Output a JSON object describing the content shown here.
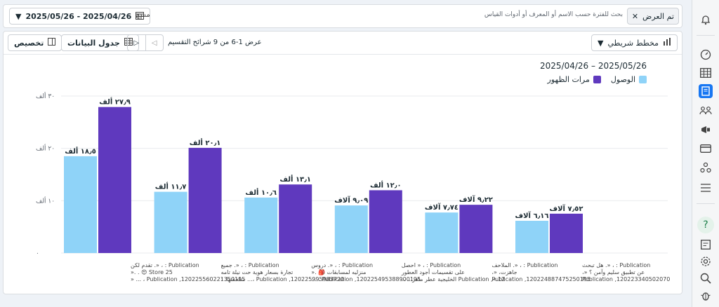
{
  "filterbar": {
    "date_range": "2025/05/26 - 2025/04/26",
    "clear_label": "مسح",
    "search_placeholder": "بحث للفترة حسب الاسم أو المعرف أو أدوات القياس",
    "chip_label": "تم العرض"
  },
  "toolbar": {
    "customize_label": "تخصيص",
    "datatable_label": "جدول البيانات",
    "page_info": "عرض 1-6 من 9 شرائح التقسيم",
    "chart_type_label": "مخطط شريطي"
  },
  "chart_header": {
    "date_range": "2025/04/26 – 2025/05/26",
    "legend": [
      {
        "label": "الوصول",
        "color": "#8fd3f8"
      },
      {
        "label": "مرات الظهور",
        "color": "#5f39be"
      }
    ]
  },
  "colors": {
    "reach": "#8fd3f8",
    "impressions": "#5f39be",
    "accent": "#1877f2"
  },
  "chart_data": {
    "type": "bar",
    "ylim": [
      0,
      30000
    ],
    "yticks": [
      {
        "value": 0,
        "label": "٠"
      },
      {
        "value": 10000,
        "label": "١٠ ألف"
      },
      {
        "value": 20000,
        "label": "٢٠ ألف"
      },
      {
        "value": 30000,
        "label": "٣٠ ألف"
      }
    ],
    "categories": [
      {
        "lines": [
          "Publication : ، «. تقدم لكن",
          "Store 25 😍 . .«",
          "Publication ,120225560221350195 ، ... «"
        ]
      },
      {
        "lines": [
          "Publication : ، «. جميع",
          "تجارة بسعار هوية حت نيلة تامه",
          "Publication ,120225995983720 ،... سلحقتها. :"
        ]
      },
      {
        "lines": [
          "Publication : ، «. دروس",
          "منزليه لمسابقات 🎒 .«",
          "Publication ,120225495388900195 ، ..."
        ]
      },
      {
        "lines": [
          "Publication : ، « احصل",
          "على تقسيمات أجود العطور",
          "Publication ,«.12 الخليجية عطر ماهر... ،."
        ]
      },
      {
        "lines": [
          "Publication : ، «. الملاحف",
          "جاهزت، «،",
          "Publication ,120224887475250195"
        ]
      },
      {
        "lines": [
          "Publication : ، «. هل تبحث",
          "عن تطبيق سليم وآمن ؟ «،",
          "Publication ,120223340502070195"
        ]
      }
    ],
    "series": [
      {
        "name": "الوصول",
        "values": [
          18500,
          11700,
          10600,
          9090,
          7740,
          6160
        ],
        "labels": [
          "١٨٫٥ ألف",
          "١١٫٧ ألف",
          "١٠٫٦ ألف",
          "٩٫٠٩ آلاف",
          "٧٫٧٤ آلاف",
          "٦٫١٦ آلاف"
        ]
      },
      {
        "name": "مرات الظهور",
        "values": [
          27900,
          20100,
          13100,
          12000,
          9220,
          7520
        ],
        "labels": [
          "٢٧٫٩ ألف",
          "٢٠٫١ ألف",
          "١٣٫١ ألف",
          "١٢٫٠ ألف",
          "٩٫٢٢ آلاف",
          "٧٫٥٢ آلاف"
        ]
      }
    ]
  }
}
